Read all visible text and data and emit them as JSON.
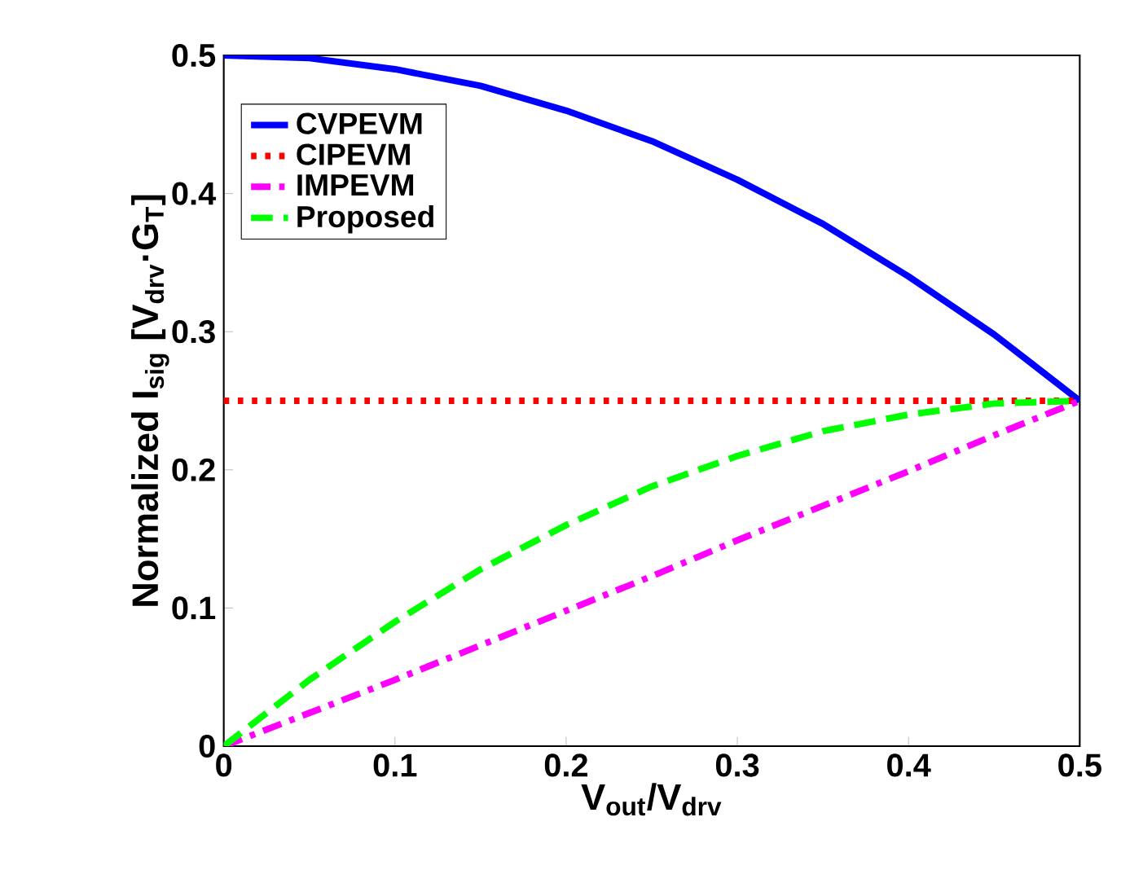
{
  "chart_data": {
    "type": "line",
    "xlabel": "V$_{out}$/V$_{drv}$",
    "ylabel": "Normalized I$_{sig}$ [V$_{drv}$·G$_{T}$]",
    "x": [
      0,
      0.05,
      0.1,
      0.15,
      0.2,
      0.25,
      0.3,
      0.35,
      0.4,
      0.45,
      0.5
    ],
    "series": [
      {
        "name": "CVPEVM",
        "color": "#0000ff",
        "line_style": "solid",
        "values": [
          0.5,
          0.498,
          0.49,
          0.478,
          0.46,
          0.438,
          0.41,
          0.378,
          0.34,
          0.298,
          0.25
        ]
      },
      {
        "name": "CIPEVM",
        "color": "#ff0000",
        "line_style": "dotted",
        "values": [
          0.25,
          0.25,
          0.25,
          0.25,
          0.25,
          0.25,
          0.25,
          0.25,
          0.25,
          0.25,
          0.25
        ]
      },
      {
        "name": "IMPEVM",
        "color": "#ff00ff",
        "line_style": "dashdot",
        "values": [
          0,
          0.024,
          0.048,
          0.073,
          0.098,
          0.123,
          0.149,
          0.174,
          0.199,
          0.225,
          0.25
        ]
      },
      {
        "name": "Proposed",
        "color": "#00ff00",
        "line_style": "dashed",
        "values": [
          0,
          0.048,
          0.09,
          0.128,
          0.16,
          0.188,
          0.21,
          0.228,
          0.24,
          0.248,
          0.25
        ]
      }
    ],
    "xlim": [
      0,
      0.5
    ],
    "ylim": [
      0,
      0.5
    ],
    "xticks": [
      0,
      0.1,
      0.2,
      0.3,
      0.4,
      0.5
    ],
    "yticks": [
      0,
      0.1,
      0.2,
      0.3,
      0.4,
      0.5
    ],
    "legend": "top left",
    "grid": false,
    "marker": "none"
  }
}
